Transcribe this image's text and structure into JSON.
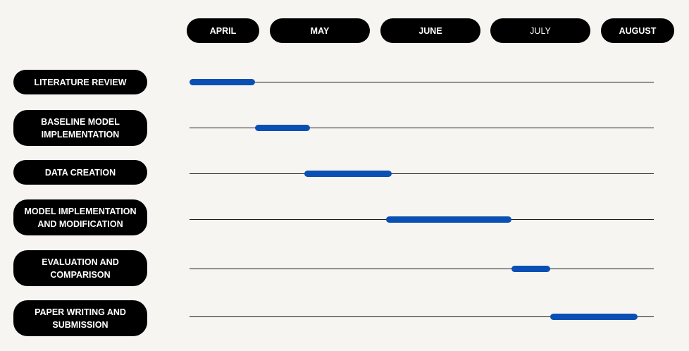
{
  "chart_data": {
    "type": "bar",
    "subtype": "gantt",
    "months": [
      "APRIL",
      "MAY",
      "JUNE",
      "JULY",
      "AUGUST"
    ],
    "tasks": [
      {
        "label": "LITERATURE REVIEW",
        "start": 0.0,
        "end": 0.6
      },
      {
        "label": "BASELINE MODEL\nIMPLEMENTATION",
        "start": 0.6,
        "end": 1.1
      },
      {
        "label": "DATA CREATION",
        "start": 1.05,
        "end": 1.85
      },
      {
        "label": "MODEL IMPLEMENTATION\nAND MODIFICATION",
        "start": 1.8,
        "end": 2.95
      },
      {
        "label": "EVALUATION AND\nCOMPARISON",
        "start": 2.95,
        "end": 3.3
      },
      {
        "label": "PAPER WRITING AND\nSUBMISSION",
        "start": 3.3,
        "end": 4.1
      }
    ],
    "x_unit": "months elapsed since start of APRIL",
    "xlim": [
      0,
      4.2
    ],
    "bar_color": "#0a50b4",
    "label_bg": "#000000",
    "label_text_color": "#ffffff",
    "background": "#f7f5f2"
  }
}
